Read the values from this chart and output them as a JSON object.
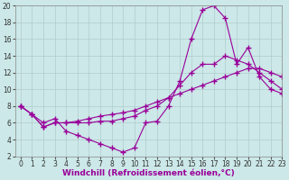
{
  "line1_x": [
    0,
    1,
    2,
    3,
    4,
    5,
    6,
    7,
    8,
    9,
    10,
    11,
    12,
    13,
    14,
    15,
    16,
    17,
    18,
    19,
    20,
    21,
    22,
    23
  ],
  "line1_y": [
    8,
    7,
    6,
    6.5,
    5,
    4.5,
    4,
    3.5,
    3,
    2.5,
    3,
    6,
    6.2,
    8,
    11,
    16,
    19.5,
    20,
    18.5,
    13,
    15,
    11.5,
    10,
    9.5
  ],
  "line2_x": [
    0,
    1,
    2,
    3,
    4,
    5,
    6,
    7,
    8,
    9,
    10,
    11,
    12,
    13,
    14,
    15,
    16,
    17,
    18,
    19,
    20,
    21,
    22,
    23
  ],
  "line2_y": [
    8,
    7,
    5.5,
    6,
    6,
    6,
    6,
    6.2,
    6.2,
    6.5,
    6.8,
    7.5,
    8,
    9,
    10.5,
    12,
    13,
    13,
    14,
    13.5,
    13,
    12,
    11,
    10
  ],
  "line3_x": [
    0,
    1,
    2,
    3,
    4,
    5,
    6,
    7,
    8,
    9,
    10,
    11,
    12,
    13,
    14,
    15,
    16,
    17,
    18,
    19,
    20,
    21,
    22,
    23
  ],
  "line3_y": [
    8,
    7,
    5.5,
    6,
    6,
    6.2,
    6.5,
    6.8,
    7,
    7.2,
    7.5,
    8,
    8.5,
    9,
    9.5,
    10,
    10.5,
    11,
    11.5,
    12,
    12.5,
    12.5,
    12,
    11.5
  ],
  "line_color": "#990099",
  "bg_color": "#cce8e8",
  "grid_color": "#b0cccc",
  "xlabel": "Windchill (Refroidissement éolien,°C)",
  "xlim": [
    -0.5,
    23
  ],
  "ylim": [
    2,
    20
  ],
  "xticks": [
    0,
    1,
    2,
    3,
    4,
    5,
    6,
    7,
    8,
    9,
    10,
    11,
    12,
    13,
    14,
    15,
    16,
    17,
    18,
    19,
    20,
    21,
    22,
    23
  ],
  "yticks": [
    2,
    4,
    6,
    8,
    10,
    12,
    14,
    16,
    18,
    20
  ],
  "marker": "+",
  "markersize": 5,
  "linewidth": 0.8,
  "xlabel_fontsize": 6.5,
  "tick_fontsize": 5.5,
  "figwidth": 3.2,
  "figheight": 2.0,
  "dpi": 100
}
